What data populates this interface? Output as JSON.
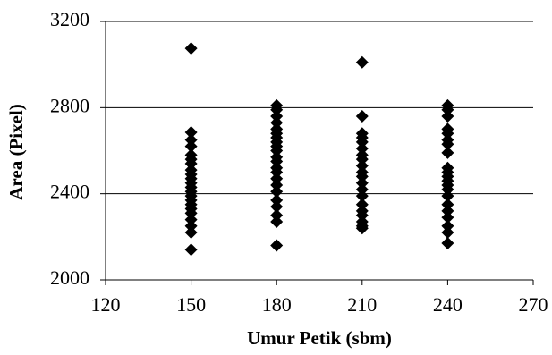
{
  "chart_data": {
    "type": "scatter",
    "xlabel": "Umur Petik (sbm)",
    "ylabel": "Area (Pixel)",
    "x": [
      150,
      150,
      150,
      150,
      150,
      150,
      150,
      150,
      150,
      150,
      150,
      150,
      150,
      150,
      150,
      150,
      150,
      150,
      150,
      150,
      150,
      150,
      180,
      180,
      180,
      180,
      180,
      180,
      180,
      180,
      180,
      180,
      180,
      180,
      180,
      180,
      180,
      180,
      180,
      180,
      180,
      180,
      180,
      180,
      210,
      210,
      210,
      210,
      210,
      210,
      210,
      210,
      210,
      210,
      210,
      210,
      210,
      210,
      210,
      210,
      210,
      210,
      210,
      210,
      240,
      240,
      240,
      240,
      240,
      240,
      240,
      240,
      240,
      240,
      240,
      240,
      240,
      240,
      240,
      240,
      240,
      240,
      240,
      240,
      240
    ],
    "values": [
      3075,
      2685,
      2650,
      2620,
      2580,
      2560,
      2540,
      2510,
      2490,
      2470,
      2450,
      2430,
      2410,
      2390,
      2370,
      2350,
      2330,
      2310,
      2280,
      2250,
      2220,
      2140,
      2810,
      2790,
      2760,
      2730,
      2700,
      2680,
      2660,
      2640,
      2620,
      2600,
      2570,
      2550,
      2520,
      2500,
      2470,
      2440,
      2410,
      2370,
      2340,
      2300,
      2270,
      2160,
      3010,
      2760,
      2680,
      2660,
      2640,
      2610,
      2580,
      2560,
      2530,
      2500,
      2480,
      2450,
      2420,
      2390,
      2350,
      2320,
      2300,
      2270,
      2250,
      2240,
      2810,
      2790,
      2760,
      2700,
      2680,
      2650,
      2630,
      2590,
      2520,
      2500,
      2480,
      2460,
      2440,
      2420,
      2390,
      2350,
      2320,
      2290,
      2250,
      2220,
      2170
    ],
    "color": "#000000",
    "xlim": [
      120,
      270
    ],
    "xticks": [
      120,
      150,
      180,
      210,
      240,
      270
    ],
    "ylim": [
      2000,
      3200
    ],
    "yticks": [
      2000,
      2400,
      2800,
      3200
    ],
    "grid": true
  }
}
